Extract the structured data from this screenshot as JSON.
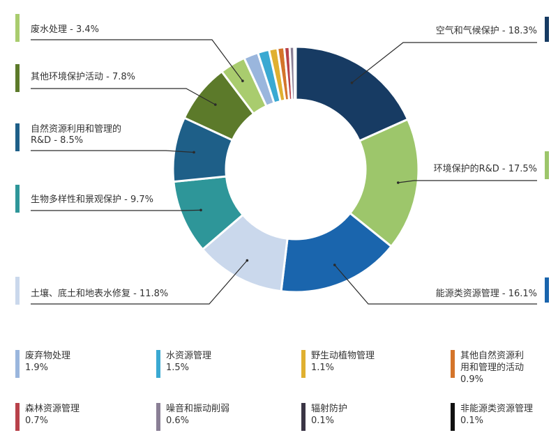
{
  "chart_data": {
    "type": "pie",
    "donut": true,
    "unit": "%",
    "categories": [
      "空气和气候保护",
      "环境保护的R&D",
      "能源类资源管理",
      "土壤、底土和地表水修复",
      "生物多样性和景观保护",
      "自然资源利用和管理的R&D",
      "其他环境保护活动",
      "废水处理",
      "废弃物处理",
      "水资源管理",
      "野生动植物管理",
      "其他自然资源利用和管理的活动",
      "森林资源管理",
      "噪音和振动削弱",
      "辐射防护",
      "非能源类资源管理"
    ],
    "values": [
      18.3,
      17.5,
      16.1,
      11.8,
      9.7,
      8.5,
      7.8,
      3.4,
      1.9,
      1.5,
      1.1,
      0.9,
      0.7,
      0.6,
      0.1,
      0.1
    ],
    "colors": [
      "#173b63",
      "#9dc66b",
      "#1a65ad",
      "#cad8ec",
      "#2e9699",
      "#1e5f88",
      "#5c7a2a",
      "#a9cc6e",
      "#9ab6dd",
      "#3aa9d2",
      "#e0b030",
      "#d4742a",
      "#b8414a",
      "#8a7f95",
      "#3a3545",
      "#111111"
    ],
    "callouts": [
      "空气和气候保护 - 18.3%",
      "环境保护的R&D - 17.5%",
      "能源类资源管理 - 16.1%",
      "土壤、底土和地表水修复 - 11.8%",
      "生物多样性和景观保护 - 9.7%",
      "自然资源利用和管理的\nR&D - 8.5%",
      "其他环境保护活动 - 7.8%",
      "废水处理 - 3.4%"
    ],
    "legend": [
      {
        "name": "废弃物处理",
        "pct": "1.9%"
      },
      {
        "name": "水资源管理",
        "pct": "1.5%"
      },
      {
        "name": "野生动植物管理",
        "pct": "1.1%"
      },
      {
        "name": "其他自然资源利\n用和管理的活动",
        "pct": "0.9%"
      },
      {
        "name": "森林资源管理",
        "pct": "0.7%"
      },
      {
        "name": "噪音和振动削弱",
        "pct": "0.6%"
      },
      {
        "name": "辐射防护",
        "pct": "0.1%"
      },
      {
        "name": "非能源类资源管理",
        "pct": "0.1%"
      }
    ]
  }
}
